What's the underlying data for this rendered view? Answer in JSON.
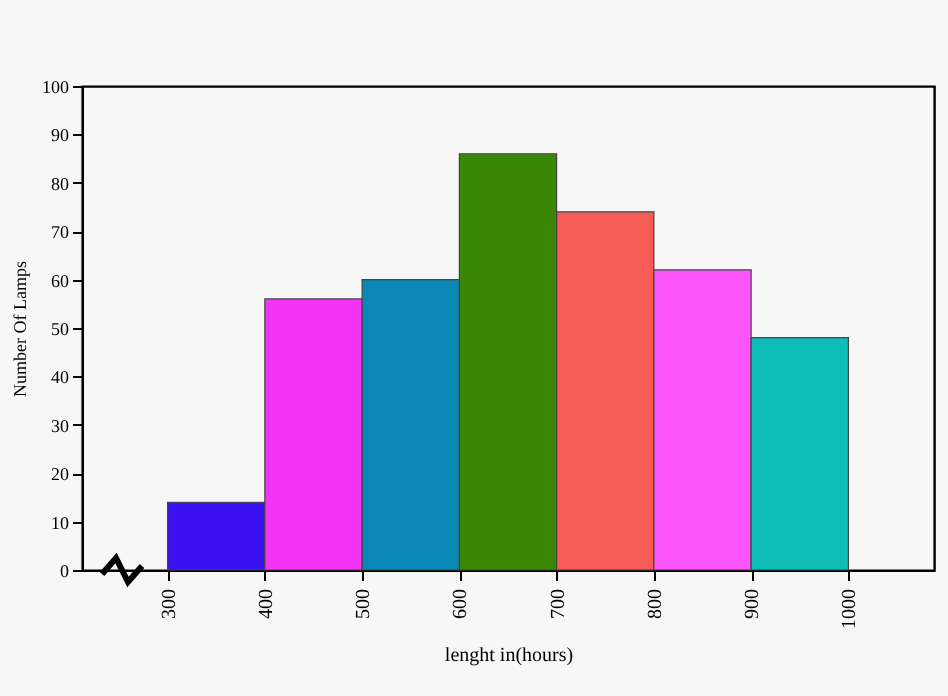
{
  "chart_data": {
    "type": "histogram",
    "xlabel": "lenght in(hours)",
    "ylabel": "Number Of Lamps",
    "bins": [
      300,
      400,
      500,
      600,
      700,
      800,
      900,
      1000
    ],
    "values": [
      14,
      56,
      60,
      86,
      74,
      62,
      48
    ],
    "colors": [
      "#3a0ff0",
      "#f535f5",
      "#0a88b5",
      "#3a8705",
      "#f55c55",
      "#fb55fb",
      "#0ebdb5"
    ],
    "xlim": [
      212,
      1088
    ],
    "xticks": [
      300,
      400,
      500,
      600,
      700,
      800,
      900,
      1000
    ],
    "ylim": [
      0,
      100
    ],
    "yticks": [
      0,
      10,
      20,
      30,
      40,
      50,
      60,
      70,
      80,
      90,
      100
    ],
    "grid": false
  }
}
